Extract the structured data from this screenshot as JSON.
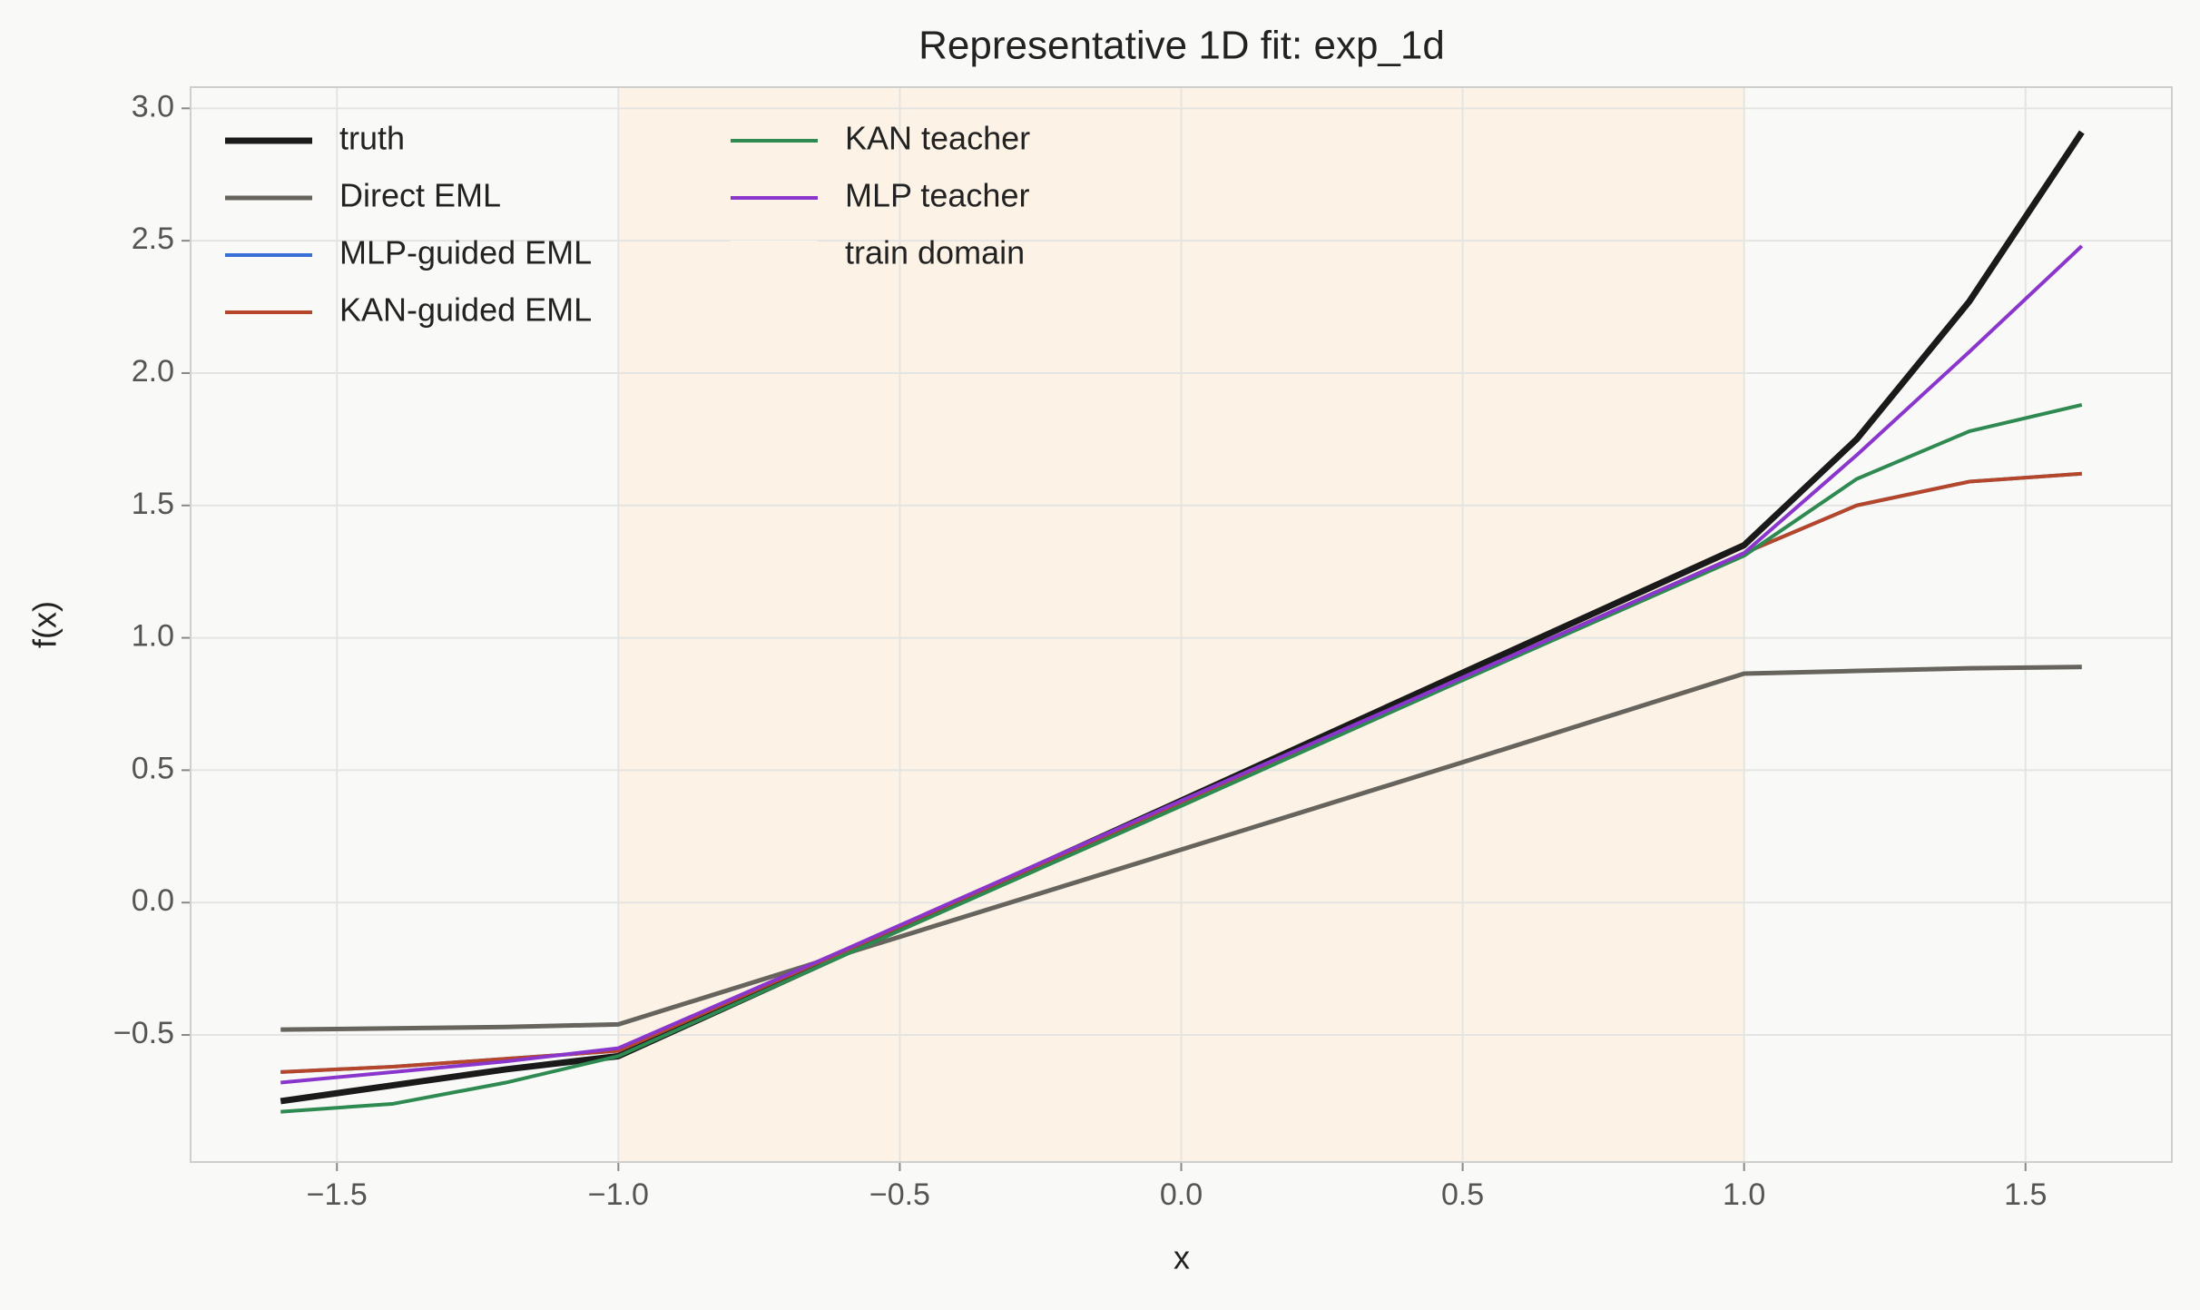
{
  "chart_data": {
    "type": "line",
    "title": "Representative 1D fit: exp_1d",
    "x_label": "x",
    "y_label": "f(x)",
    "x": [
      -1.6,
      -1.4,
      -1.2,
      -1.0,
      -0.6,
      0,
      0.5,
      1.0,
      1.2,
      1.4,
      1.6
    ],
    "series": [
      {
        "name": "truth",
        "color": "#1a1a1a",
        "values": [
          -0.75,
          -0.69,
          -0.63,
          -0.58,
          -0.194,
          0.385,
          0.868,
          1.35,
          1.75,
          2.27,
          2.91
        ]
      },
      {
        "name": "Direct EML",
        "color": "#67645e",
        "values": [
          -0.48,
          -0.475,
          -0.47,
          -0.46,
          -0.195,
          0.2,
          0.53,
          0.865,
          0.875,
          0.885,
          0.89
        ]
      },
      {
        "name": "MLP-guided EML",
        "color": "#3b6fd8",
        "values": [
          -0.64,
          -0.62,
          -0.59,
          -0.56,
          -0.184,
          0.38,
          0.85,
          1.32,
          1.5,
          1.59,
          1.62
        ]
      },
      {
        "name": "KAN-guided EML",
        "color": "#b5462a",
        "values": [
          -0.64,
          -0.62,
          -0.59,
          -0.56,
          -0.184,
          0.38,
          0.85,
          1.32,
          1.5,
          1.59,
          1.62
        ]
      },
      {
        "name": "KAN teacher",
        "color": "#2e8a50",
        "values": [
          -0.79,
          -0.76,
          -0.68,
          -0.58,
          -0.2,
          0.365,
          0.84,
          1.31,
          1.6,
          1.78,
          1.88
        ]
      },
      {
        "name": "MLP teacher",
        "color": "#8a35cc",
        "values": [
          -0.68,
          -0.64,
          -0.6,
          -0.55,
          -0.18,
          0.385,
          0.85,
          1.32,
          1.69,
          2.08,
          2.48
        ]
      }
    ],
    "shaded_region": {
      "name": "train domain",
      "range": [
        -1.0,
        1.0
      ],
      "color": "#fcf3e6"
    },
    "xlim": [
      -1.76,
      1.76
    ],
    "ylim": [
      -0.98,
      3.08
    ],
    "xticks": [
      {
        "value": -1.5,
        "label": "−1.5"
      },
      {
        "value": -1.0,
        "label": "−1.0"
      },
      {
        "value": -0.5,
        "label": "−0.5"
      },
      {
        "value": 0,
        "label": "0.0"
      },
      0.5,
      {
        "value": 1,
        "label": "1.0"
      },
      1.5
    ],
    "yticks": [
      {
        "value": -0.5,
        "label": "−0.5"
      },
      {
        "value": 0,
        "label": "0.0"
      },
      0.5,
      {
        "value": 1,
        "label": "1.0"
      },
      1.5,
      {
        "value": 2,
        "label": "2.0"
      },
      2.5,
      {
        "value": 3,
        "label": "3.0"
      }
    ],
    "grid": true,
    "legend": "upper left"
  }
}
